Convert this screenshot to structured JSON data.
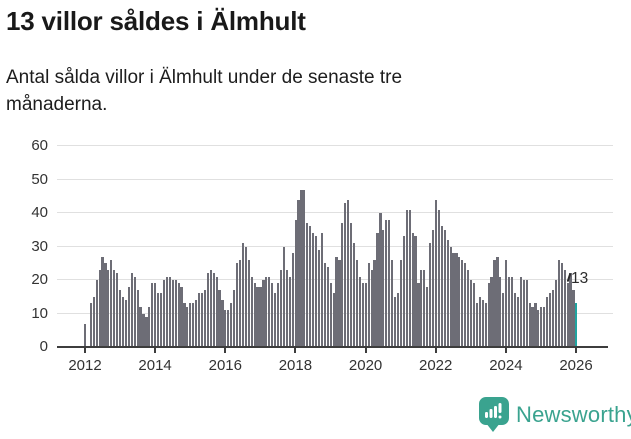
{
  "header": {
    "title": "13 villor såldes i Älmhult",
    "subtitle": "Antal sålda villor i Älmhult under de senaste tre månaderna."
  },
  "chart_data": {
    "type": "bar",
    "title": "13 villor såldes i Älmhult",
    "x_start_year": 2012,
    "months_per_bar": 1,
    "x_tick_labels": [
      "2012",
      "2014",
      "2016",
      "2018",
      "2020",
      "2022",
      "2024",
      "2026"
    ],
    "y_ticks": [
      0,
      10,
      20,
      30,
      40,
      50,
      60
    ],
    "ylim": [
      0,
      60
    ],
    "grid": true,
    "legend": "none",
    "series": [
      {
        "name": "Antal sålda villor",
        "values": [
          7,
          0,
          13,
          15,
          20,
          23,
          27,
          25,
          23,
          26,
          23,
          22,
          17,
          15,
          14,
          18,
          22,
          21,
          17,
          12,
          10,
          9,
          12,
          19,
          19,
          16,
          16,
          20,
          21,
          21,
          20,
          20,
          19,
          18,
          13,
          12,
          13,
          13,
          14,
          16,
          16,
          17,
          22,
          23,
          22,
          21,
          17,
          14,
          11,
          11,
          13,
          17,
          25,
          26,
          31,
          30,
          26,
          21,
          19,
          18,
          18,
          20,
          21,
          21,
          19,
          16,
          19,
          23,
          30,
          23,
          21,
          28,
          38,
          44,
          47,
          47,
          37,
          36,
          34,
          33,
          29,
          34,
          25,
          24,
          19,
          16,
          27,
          26,
          37,
          43,
          44,
          37,
          31,
          26,
          21,
          19,
          19,
          25,
          23,
          26,
          34,
          40,
          35,
          38,
          38,
          26,
          15,
          16,
          26,
          33,
          41,
          41,
          34,
          33,
          19,
          23,
          23,
          18,
          31,
          35,
          44,
          41,
          36,
          35,
          32,
          30,
          28,
          28,
          27,
          26,
          25,
          23,
          20,
          19,
          13,
          15,
          14,
          13,
          19,
          21,
          26,
          27,
          21,
          16,
          26,
          21,
          21,
          16,
          15,
          21,
          20,
          20,
          13,
          12,
          13,
          11,
          12,
          12,
          15,
          16,
          17,
          20,
          26,
          25,
          23,
          19,
          22,
          17,
          13
        ]
      }
    ],
    "highlight": {
      "index": 168,
      "value": 13,
      "label": "13"
    }
  },
  "footer": {
    "brand": "Newsworthy"
  },
  "colors": {
    "bar": "#6d6d76",
    "highlight": "#20a4a0",
    "grid": "#e0e0e0",
    "axis": "#3d3d3d",
    "tick_text": "#333333",
    "text": "#191919",
    "logo": "#3aa38f"
  }
}
